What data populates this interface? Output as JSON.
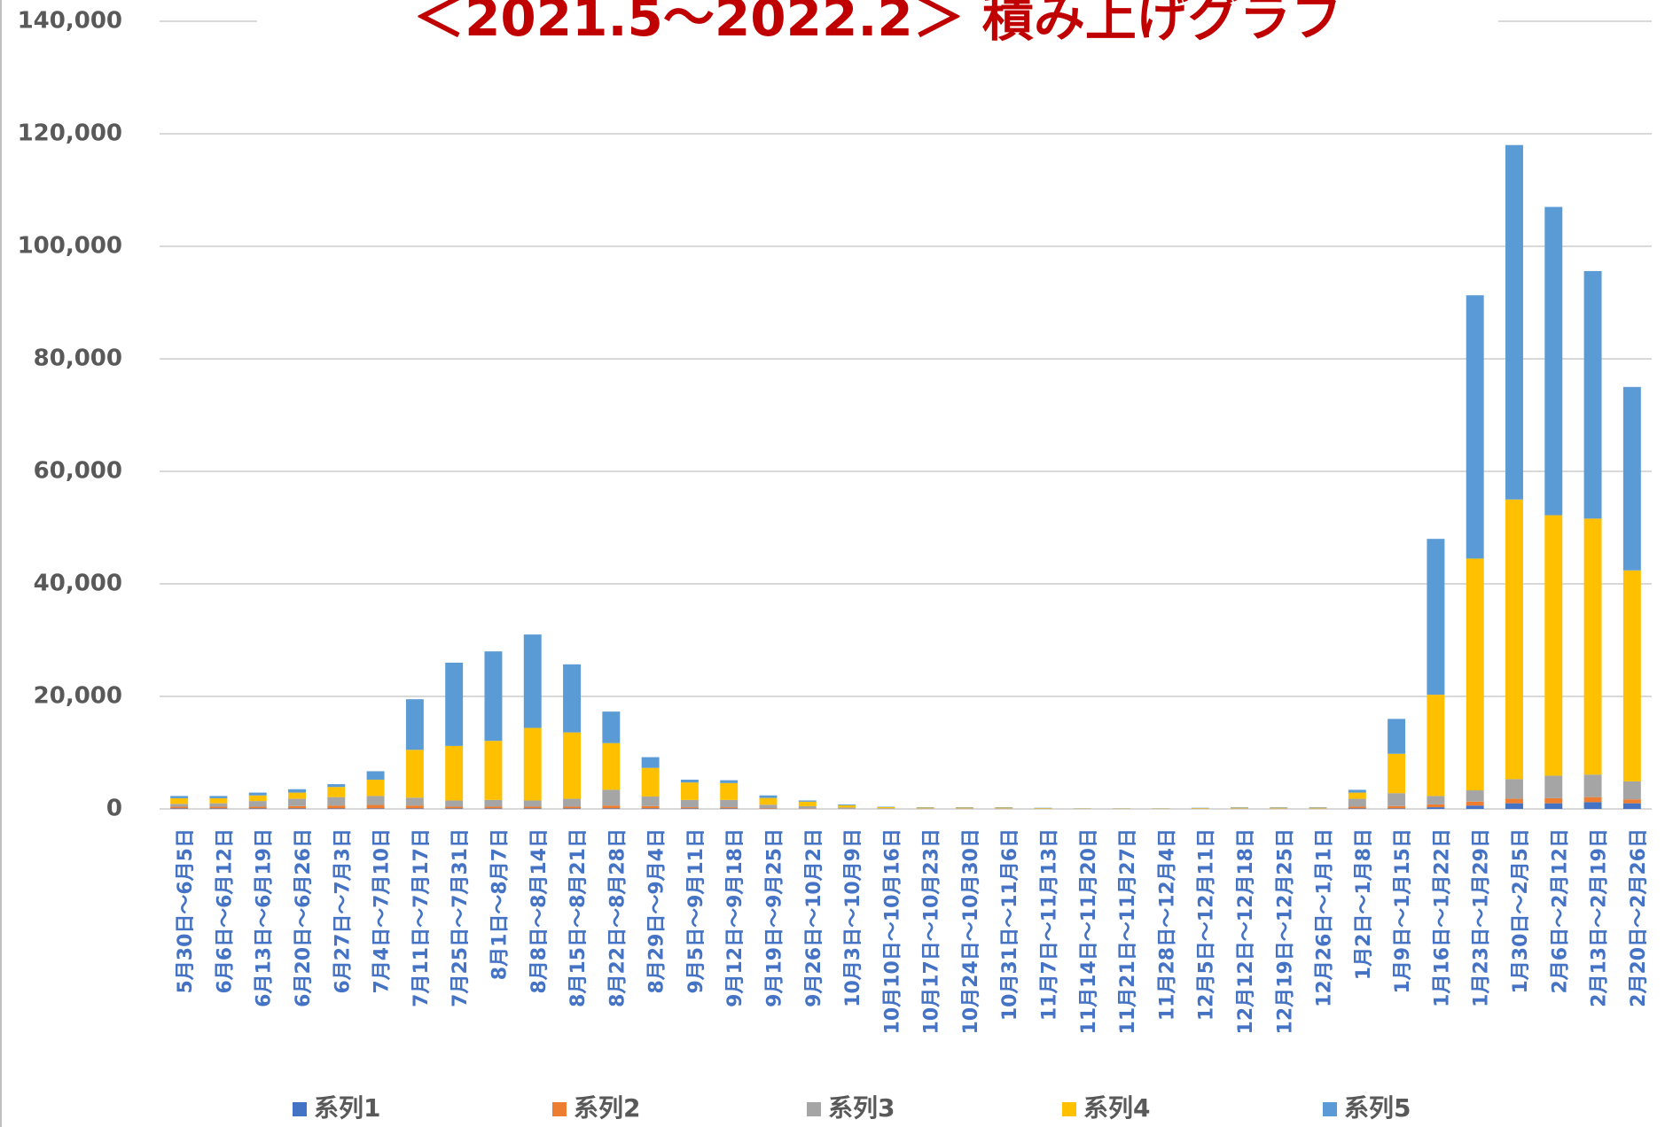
{
  "chart_data": {
    "type": "stacked_bar",
    "title": "＜2021.5～2022.2＞ 積み上げグラフ",
    "categories": [
      "5月30日～6月5日",
      "6月6日～6月12日",
      "6月13日～6月19日",
      "6月20日～6月26日",
      "6月27日～7月3日",
      "7月4日～7月10日",
      "7月11日～7月17日",
      "7月25日～7月31日",
      "8月1日～8月7日",
      "8月8日～8月14日",
      "8月15日～8月21日",
      "8月22日～8月28日",
      "8月29日～9月4日",
      "9月5日～9月11日",
      "9月12日～9月18日",
      "9月19日～9月25日",
      "9月26日～10月2日",
      "10月3日～10月9日",
      "10月10日～10月16日",
      "10月17日～10月23日",
      "10月24日～10月30日",
      "10月31日～11月6日",
      "11月7日～11月13日",
      "11月14日～11月20日",
      "11月21日～11月27日",
      "11月28日～12月4日",
      "12月5日～12月11日",
      "12月12日～12月18日",
      "12月19日～12月25日",
      "12月26日～1月1日",
      "1月2日～1月8日",
      "1月9日～1月15日",
      "1月16日～1月22日",
      "1月23日～1月29日",
      "1月30日～2月5日",
      "2月6日～2月12日",
      "2月13日～2月19日",
      "2月20日～2月26日"
    ],
    "series": [
      {
        "name": "系列1",
        "color": "#4472c4",
        "values": [
          100,
          100,
          100,
          100,
          100,
          100,
          100,
          100,
          100,
          100,
          100,
          100,
          100,
          100,
          100,
          50,
          30,
          20,
          10,
          10,
          10,
          10,
          5,
          2,
          2,
          2,
          5,
          5,
          5,
          5,
          100,
          100,
          300,
          600,
          1000,
          1000,
          1200,
          1000
        ]
      },
      {
        "name": "系列2",
        "color": "#ed7d31",
        "values": [
          300,
          300,
          300,
          400,
          500,
          600,
          500,
          300,
          300,
          300,
          300,
          500,
          400,
          200,
          200,
          100,
          60,
          30,
          20,
          20,
          20,
          20,
          10,
          5,
          5,
          5,
          10,
          15,
          15,
          15,
          300,
          400,
          500,
          700,
          800,
          900,
          900,
          700
        ]
      },
      {
        "name": "系列3",
        "color": "#a5a5a5",
        "values": [
          500,
          600,
          1000,
          1300,
          1500,
          1600,
          1400,
          1100,
          1200,
          1100,
          1400,
          2800,
          1700,
          1300,
          1300,
          600,
          400,
          200,
          100,
          80,
          80,
          80,
          60,
          30,
          30,
          30,
          60,
          80,
          80,
          80,
          1400,
          2300,
          1500,
          2000,
          3500,
          4000,
          4000,
          3200
        ]
      },
      {
        "name": "系列4",
        "color": "#ffc000",
        "values": [
          1000,
          900,
          1000,
          1100,
          1800,
          2900,
          8500,
          9700,
          10500,
          12900,
          11800,
          8300,
          5100,
          3100,
          3000,
          1200,
          800,
          400,
          200,
          120,
          120,
          120,
          80,
          40,
          40,
          40,
          80,
          120,
          120,
          120,
          1100,
          7000,
          18000,
          41200,
          49700,
          46300,
          45500,
          37500
        ]
      },
      {
        "name": "系列5",
        "color": "#5b9bd5",
        "values": [
          400,
          400,
          500,
          600,
          500,
          1500,
          9000,
          14800,
          15900,
          16600,
          12100,
          5600,
          1900,
          500,
          500,
          450,
          210,
          150,
          70,
          70,
          70,
          70,
          45,
          23,
          23,
          23,
          45,
          80,
          80,
          80,
          500,
          6200,
          27700,
          46800,
          63000,
          54800,
          44000,
          32600
        ]
      }
    ],
    "ylim": [
      0,
      140000
    ],
    "yticks": [
      0,
      {
        "value": 20000,
        "label": "20,000"
      },
      {
        "value": 40000,
        "label": "40,000"
      },
      {
        "value": 60000,
        "label": "60,000"
      },
      {
        "value": 80000,
        "label": "80,000"
      },
      {
        "value": 100000,
        "label": "100,000"
      },
      {
        "value": 120000,
        "label": "120,000"
      },
      {
        "value": 140000,
        "label": "140,000"
      }
    ],
    "grid": true
  }
}
